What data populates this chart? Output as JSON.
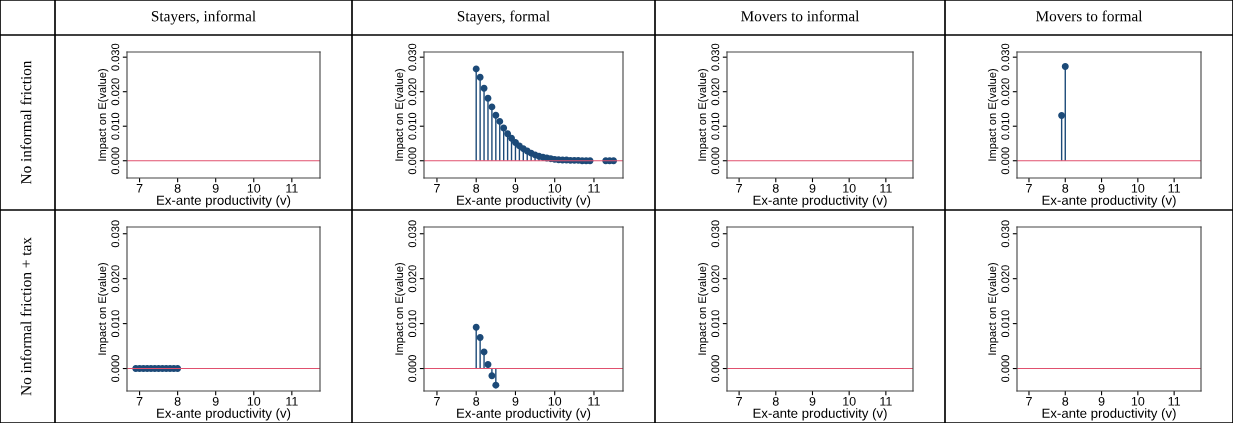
{
  "chart_data": [
    {
      "type": "lollipop",
      "title": "Stayers, informal",
      "annotations": [
        "No informal friction"
      ],
      "xlabel": "Ex-ante productivity (v)",
      "ylabel": "Impact on E(value)",
      "xlim": [
        6.67,
        11.74
      ],
      "ylim": [
        -0.005,
        0.0315
      ],
      "xticks": [
        7,
        8,
        9,
        10,
        11
      ],
      "yticks": [
        {
          "value": 0,
          "label": "0.000"
        },
        {
          "value": 0.01,
          "label": "0.010"
        },
        {
          "value": 0.02,
          "label": "0.020"
        },
        {
          "value": 0.03,
          "label": "0.030"
        }
      ],
      "ref_lines": [
        {
          "axis": "y",
          "value": 0,
          "color": "#e0506e"
        }
      ]
    },
    {
      "type": "lollipop",
      "title": "Stayers, formal",
      "xlabel": "Ex-ante productivity (v)",
      "ylabel": "Impact on E(value)",
      "xlim": [
        6.67,
        11.74
      ],
      "ylim": [
        -0.005,
        0.0315
      ],
      "xticks": [
        7,
        8,
        9,
        10,
        11
      ],
      "yticks": [
        {
          "value": 0,
          "label": "0.000"
        },
        {
          "value": 0.01,
          "label": "0.010"
        },
        {
          "value": 0.02,
          "label": "0.020"
        },
        {
          "value": 0.03,
          "label": "0.030"
        }
      ],
      "ref_lines": [
        {
          "axis": "y",
          "value": 0,
          "color": "#e0506e"
        }
      ],
      "marker": "circle",
      "series": [
        {
          "color": "#1c4a78",
          "x": [
            8.0,
            8.1,
            8.2,
            8.3,
            8.4,
            8.5,
            8.6,
            8.7,
            8.8,
            8.9,
            9.0,
            9.1,
            9.2,
            9.3,
            9.4,
            9.5,
            9.6,
            9.7,
            9.8,
            9.9,
            10.0,
            10.1,
            10.2,
            10.3,
            10.4,
            10.5,
            10.6,
            10.7,
            10.8,
            10.9,
            11.3,
            11.4,
            11.5
          ],
          "values": [
            0.0266,
            0.0242,
            0.021,
            0.0181,
            0.0156,
            0.0132,
            0.0114,
            0.0095,
            0.0078,
            0.0065,
            0.0053,
            0.0043,
            0.0035,
            0.0028,
            0.0022,
            0.0017,
            0.0013,
            0.001,
            0.0008,
            0.0006,
            0.0004,
            0.0003,
            0.0002,
            0.0002,
            0.0001,
            0.0001,
            0.0001,
            0,
            0,
            0,
            0,
            0,
            0
          ]
        }
      ]
    },
    {
      "type": "lollipop",
      "title": "Movers to informal",
      "xlabel": "Ex-ante productivity (v)",
      "ylabel": "Impact on E(value)",
      "xlim": [
        6.67,
        11.74
      ],
      "ylim": [
        -0.005,
        0.0315
      ],
      "xticks": [
        7,
        8,
        9,
        10,
        11
      ],
      "yticks": [
        {
          "value": 0,
          "label": "0.000"
        },
        {
          "value": 0.01,
          "label": "0.010"
        },
        {
          "value": 0.02,
          "label": "0.020"
        },
        {
          "value": 0.03,
          "label": "0.030"
        }
      ],
      "ref_lines": [
        {
          "axis": "y",
          "value": 0,
          "color": "#e0506e"
        }
      ]
    },
    {
      "type": "lollipop",
      "title": "Movers to formal",
      "xlabel": "Ex-ante productivity (v)",
      "ylabel": "Impact on E(value)",
      "xlim": [
        6.67,
        11.74
      ],
      "ylim": [
        -0.005,
        0.0315
      ],
      "xticks": [
        7,
        8,
        9,
        10,
        11
      ],
      "yticks": [
        {
          "value": 0,
          "label": "0.000"
        },
        {
          "value": 0.01,
          "label": "0.010"
        },
        {
          "value": 0.02,
          "label": "0.020"
        },
        {
          "value": 0.03,
          "label": "0.030"
        }
      ],
      "ref_lines": [
        {
          "axis": "y",
          "value": 0,
          "color": "#e0506e"
        }
      ],
      "marker": "circle",
      "series": [
        {
          "color": "#1c4a78",
          "x": [
            7.9,
            8.0
          ],
          "values": [
            0.0131,
            0.0273
          ]
        }
      ]
    },
    {
      "type": "lollipop",
      "annotations": [
        "No informal friction + tax"
      ],
      "xlabel": "Ex-ante productivity (v)",
      "ylabel": "Impact on E(value)",
      "xlim": [
        6.67,
        11.74
      ],
      "ylim": [
        -0.005,
        0.0315
      ],
      "xticks": [
        7,
        8,
        9,
        10,
        11
      ],
      "yticks": [
        {
          "value": 0,
          "label": "0.000"
        },
        {
          "value": 0.01,
          "label": "0.010"
        },
        {
          "value": 0.02,
          "label": "0.020"
        },
        {
          "value": 0.03,
          "label": "0.030"
        }
      ],
      "ref_lines": [
        {
          "axis": "y",
          "value": 0,
          "color": "#e0506e"
        }
      ],
      "marker": "circle",
      "series": [
        {
          "color": "#1c4a78",
          "x": [
            6.9,
            7.0,
            7.1,
            7.2,
            7.3,
            7.4,
            7.5,
            7.6,
            7.7,
            7.8,
            7.9,
            8.0
          ],
          "values": [
            0,
            0,
            0,
            0,
            0,
            0,
            0,
            0,
            0,
            0,
            0,
            0
          ]
        }
      ]
    },
    {
      "type": "lollipop",
      "xlabel": "Ex-ante productivity (v)",
      "ylabel": "Impact on E(value)",
      "xlim": [
        6.67,
        11.74
      ],
      "ylim": [
        -0.005,
        0.0315
      ],
      "xticks": [
        7,
        8,
        9,
        10,
        11
      ],
      "yticks": [
        {
          "value": 0,
          "label": "0.000"
        },
        {
          "value": 0.01,
          "label": "0.010"
        },
        {
          "value": 0.02,
          "label": "0.020"
        },
        {
          "value": 0.03,
          "label": "0.030"
        }
      ],
      "ref_lines": [
        {
          "axis": "y",
          "value": 0,
          "color": "#e0506e"
        }
      ],
      "marker": "circle",
      "series": [
        {
          "color": "#1c4a78",
          "x": [
            8.0,
            8.1,
            8.2,
            8.3,
            8.4,
            8.5
          ],
          "values": [
            0.0092,
            0.0069,
            0.0037,
            0.0009,
            -0.0016,
            -0.0037
          ]
        }
      ]
    },
    {
      "type": "lollipop",
      "xlabel": "Ex-ante productivity (v)",
      "ylabel": "Impact on E(value)",
      "xlim": [
        6.67,
        11.74
      ],
      "ylim": [
        -0.005,
        0.0315
      ],
      "xticks": [
        7,
        8,
        9,
        10,
        11
      ],
      "yticks": [
        {
          "value": 0,
          "label": "0.000"
        },
        {
          "value": 0.01,
          "label": "0.010"
        },
        {
          "value": 0.02,
          "label": "0.020"
        },
        {
          "value": 0.03,
          "label": "0.030"
        }
      ],
      "ref_lines": [
        {
          "axis": "y",
          "value": 0,
          "color": "#e0506e"
        }
      ]
    },
    {
      "type": "lollipop",
      "xlabel": "Ex-ante productivity (v)",
      "ylabel": "Impact on E(value)",
      "xlim": [
        6.67,
        11.74
      ],
      "ylim": [
        -0.005,
        0.0315
      ],
      "xticks": [
        7,
        8,
        9,
        10,
        11
      ],
      "yticks": [
        {
          "value": 0,
          "label": "0.000"
        },
        {
          "value": 0.01,
          "label": "0.010"
        },
        {
          "value": 0.02,
          "label": "0.020"
        },
        {
          "value": 0.03,
          "label": "0.030"
        }
      ],
      "ref_lines": [
        {
          "axis": "y",
          "value": 0,
          "color": "#e0506e"
        }
      ]
    }
  ]
}
